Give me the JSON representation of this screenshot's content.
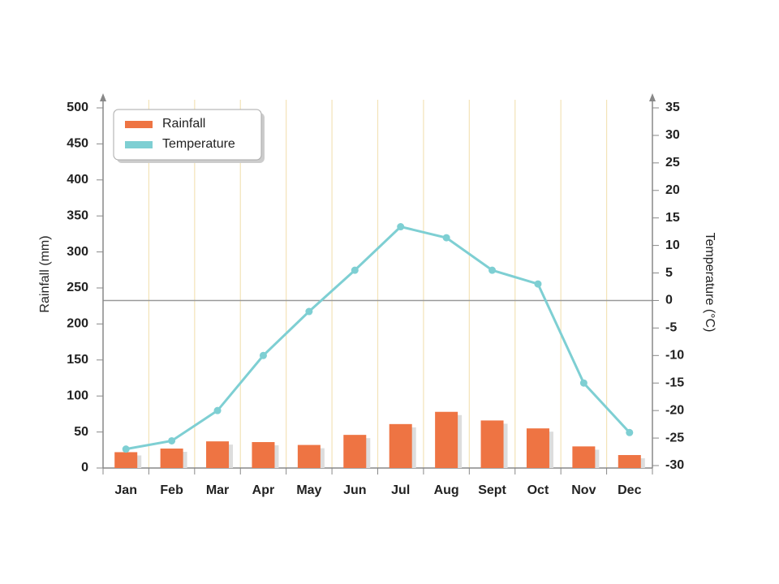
{
  "chart_data": {
    "type": "bar+line",
    "categories": [
      "Jan",
      "Feb",
      "Mar",
      "Apr",
      "May",
      "Jun",
      "Jul",
      "Aug",
      "Sept",
      "Oct",
      "Nov",
      "Dec"
    ],
    "series": [
      {
        "name": "Rainfall",
        "color": "#ee7443",
        "type": "bar",
        "axis": "y",
        "values": [
          22,
          27,
          37,
          36,
          32,
          46,
          61,
          78,
          66,
          55,
          30,
          18
        ]
      },
      {
        "name": "Temperature",
        "color": "#7ecfd3",
        "type": "line",
        "axis": "y2",
        "values": [
          -27,
          -25.5,
          -20,
          -10,
          -2,
          5.5,
          13.4,
          11.4,
          5.5,
          3,
          -15,
          -24
        ]
      }
    ],
    "ylabel": "Rainfall (mm)",
    "y2label": "Temperature (°C)",
    "ylim": [
      0,
      500
    ],
    "yticks": [
      0,
      50,
      100,
      150,
      200,
      250,
      300,
      350,
      400,
      450,
      500
    ],
    "y2lim": [
      -30,
      35
    ],
    "y2ticks": [
      -30,
      -25,
      -20,
      -15,
      -10,
      -5,
      0,
      5,
      10,
      15,
      20,
      25,
      30,
      35
    ],
    "grid": true,
    "legend": "upper left"
  }
}
